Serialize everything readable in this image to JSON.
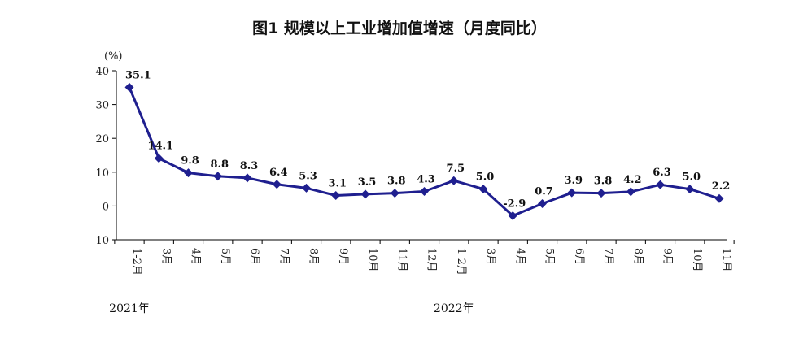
{
  "chart_data": {
    "type": "line",
    "title": "图1    规模以上工业增加值增速（月度同比）",
    "ylabel": "(%)",
    "xlabel": "",
    "ylim": [
      -10,
      40
    ],
    "yticks": [
      40,
      30,
      20,
      10,
      0,
      -10
    ],
    "grid": false,
    "categories": [
      "1-2月",
      "3月",
      "4月",
      "5月",
      "6月",
      "7月",
      "8月",
      "9月",
      "10月",
      "11月",
      "12月",
      "1-2月",
      "3月",
      "4月",
      "5月",
      "6月",
      "7月",
      "8月",
      "9月",
      "10月",
      "11月"
    ],
    "series": [
      {
        "values": [
          35.1,
          14.1,
          9.8,
          8.8,
          8.3,
          6.4,
          5.3,
          3.1,
          3.5,
          3.8,
          4.3,
          7.5,
          5.0,
          -2.9,
          0.7,
          3.9,
          3.8,
          4.2,
          6.3,
          5.0,
          2.2
        ],
        "data_labels": [
          "35.1",
          "14.1",
          "9.8",
          "8.8",
          "8.3",
          "6.4",
          "5.3",
          "3.1",
          "3.5",
          "3.8",
          "4.3",
          "7.5",
          "5.0",
          "-2.9",
          "0.7",
          "3.9",
          "3.8",
          "4.2",
          "6.3",
          "5.0",
          "2.2"
        ]
      }
    ],
    "year_labels": [
      "2021年",
      "2022年"
    ],
    "line_color": "#1f1f8f"
  }
}
